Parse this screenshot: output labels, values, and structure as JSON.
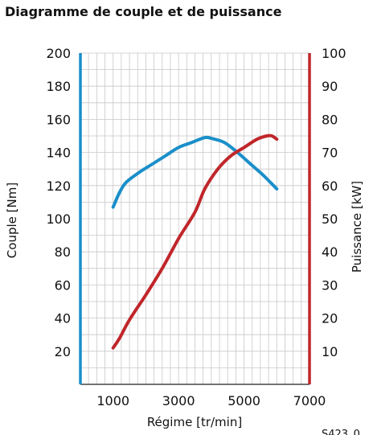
{
  "chart_data": {
    "type": "line",
    "title": "Diagramme de couple et de puissance",
    "xlabel": "Régime [tr/min]",
    "ylabel_left": "Couple [Nm]",
    "ylabel_right": "Puissance [kW]",
    "reference": "S423_0",
    "xlim": [
      0,
      7000
    ],
    "ylim_left": [
      0,
      200
    ],
    "ylim_right": [
      0,
      100
    ],
    "x_ticks": [
      1000,
      3000,
      5000,
      7000
    ],
    "y_ticks_left": [
      20,
      40,
      60,
      80,
      100,
      120,
      140,
      160,
      180,
      200
    ],
    "y_ticks_right": [
      10,
      20,
      30,
      40,
      50,
      60,
      70,
      80,
      90,
      100
    ],
    "grid": true,
    "colors": {
      "left_axis": "#1a8fc9",
      "right_axis": "#c0262a",
      "grid": "#c8c8c8"
    },
    "series": [
      {
        "axis": "left",
        "color": "#1a8fc9",
        "x": [
          1000,
          1200,
          1400,
          1800,
          2200,
          2600,
          3000,
          3400,
          3800,
          4000,
          4400,
          4800,
          5200,
          5600,
          6000
        ],
        "values": [
          107,
          116,
          122,
          128,
          133,
          138,
          143,
          146,
          149,
          148.5,
          146,
          140,
          133,
          126,
          118
        ]
      },
      {
        "axis": "right",
        "color": "#c0262a",
        "x": [
          1000,
          1200,
          1500,
          2000,
          2500,
          3000,
          3500,
          3800,
          4200,
          4600,
          5000,
          5400,
          5700,
          5850,
          6000
        ],
        "values": [
          11,
          14,
          19.5,
          27,
          35,
          44,
          52,
          59,
          65,
          69,
          71.5,
          74,
          75,
          75,
          74
        ]
      }
    ]
  }
}
